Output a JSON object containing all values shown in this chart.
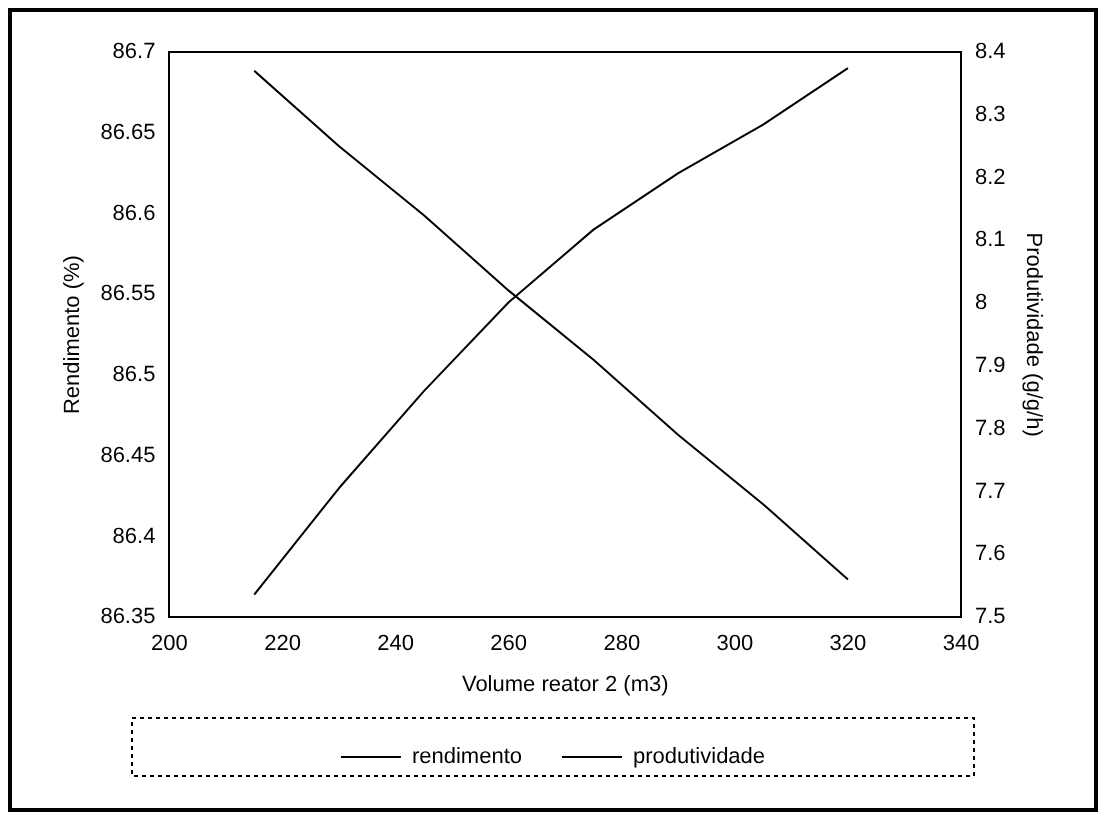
{
  "chart_data": {
    "type": "line",
    "xlabel": "Volume reator 2 (m3)",
    "ylabel": "Rendimento (%)",
    "y2label": "Produtividade (g/g/h)",
    "x": [
      215,
      230,
      245,
      260,
      275,
      290,
      305,
      320
    ],
    "series": [
      {
        "name": "rendimento",
        "color": "#000000",
        "values": [
          86.364,
          86.43,
          86.49,
          86.545,
          86.59,
          86.625,
          86.655,
          86.69
        ]
      },
      {
        "name": "produtividade",
        "color": "#000000",
        "axis": "y2",
        "values": [
          8.37,
          8.25,
          8.14,
          8.02,
          7.91,
          7.79,
          7.68,
          7.56
        ]
      }
    ],
    "xlim": [
      200,
      340
    ],
    "xticks": [
      200,
      220,
      240,
      260,
      280,
      300,
      320,
      340
    ],
    "ylim": [
      86.35,
      86.7
    ],
    "yticks": [
      86.35,
      86.4,
      86.45,
      86.5,
      86.55,
      86.6,
      86.65,
      86.7
    ],
    "y2lim": [
      7.5,
      8.4
    ],
    "y2ticks": [
      7.5,
      7.6,
      7.7,
      7.8,
      7.9,
      8,
      8.1,
      8.2,
      8.3,
      8.4
    ],
    "grid": false,
    "legend": "bottom",
    "marker": "none",
    "line_style": "solid"
  }
}
